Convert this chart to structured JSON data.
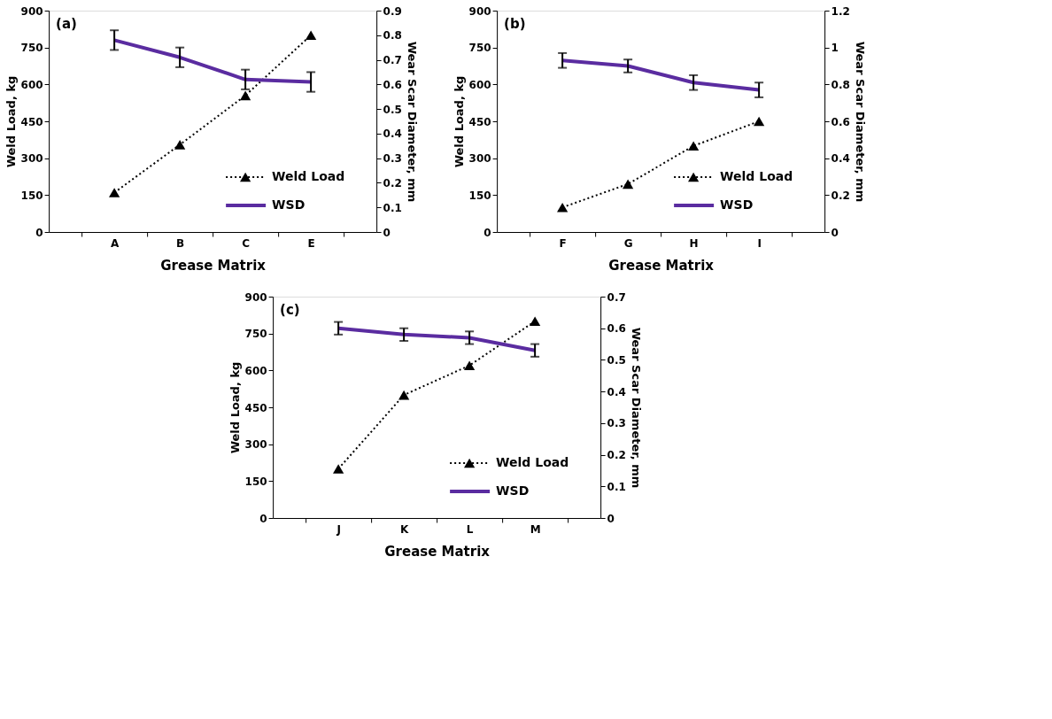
{
  "chart_data": [
    {
      "type": "line",
      "categories": [
        "A",
        "B",
        "C",
        "E"
      ],
      "xlabel": "Grease Matrix",
      "ylabel": "Weld Load, kg",
      "y2label": "Wear Scar Diameter, mm",
      "ylim": [
        0,
        900
      ],
      "yticks": [
        0,
        150,
        300,
        450,
        600,
        750,
        900
      ],
      "y2lim": [
        0,
        0.9
      ],
      "y2ticks": [
        0,
        0.1,
        0.2,
        0.3,
        0.4,
        0.5,
        0.6,
        0.7,
        0.8,
        0.9
      ],
      "grid": false,
      "legend": "bottom right",
      "annotations": [
        "(a)"
      ],
      "series": [
        {
          "name": "Weld Load",
          "color": "#000000",
          "marker": "triangle",
          "line_style": "dotted",
          "values": [
            160,
            355,
            555,
            800
          ]
        },
        {
          "name": "WSD",
          "color": "#5a2ca0",
          "marker": "none",
          "line_style": "solid",
          "axis": "y2",
          "values": [
            0.78,
            0.71,
            0.62,
            0.61
          ],
          "errors": [
            0.04,
            0.04,
            0.04,
            0.04
          ]
        }
      ]
    },
    {
      "type": "line",
      "categories": [
        "F",
        "G",
        "H",
        "I"
      ],
      "xlabel": "Grease Matrix",
      "ylabel": "Weld Load, kg",
      "y2label": "Wear Scar Diameter, mm",
      "ylim": [
        0,
        900
      ],
      "yticks": [
        0,
        150,
        300,
        450,
        600,
        750,
        900
      ],
      "y2lim": [
        0,
        1.2
      ],
      "y2ticks": [
        0,
        0.2,
        0.4,
        0.6,
        0.8,
        1,
        1.2
      ],
      "grid": false,
      "legend": "bottom right",
      "annotations": [
        "(b)"
      ],
      "series": [
        {
          "name": "Weld Load",
          "color": "#000000",
          "marker": "triangle",
          "line_style": "dotted",
          "values": [
            100,
            195,
            350,
            450
          ]
        },
        {
          "name": "WSD",
          "color": "#5a2ca0",
          "marker": "none",
          "line_style": "solid",
          "axis": "y2",
          "values": [
            0.93,
            0.9,
            0.81,
            0.77
          ],
          "errors": [
            0.04,
            0.035,
            0.04,
            0.04
          ]
        }
      ]
    },
    {
      "type": "line",
      "categories": [
        "J",
        "K",
        "L",
        "M"
      ],
      "xlabel": "Grease Matrix",
      "ylabel": "Weld Load, kg",
      "y2label": "Wear Scar Diameter, mm",
      "ylim": [
        0,
        900
      ],
      "yticks": [
        0,
        150,
        300,
        450,
        600,
        750,
        900
      ],
      "y2lim": [
        0,
        0.7
      ],
      "y2ticks": [
        0,
        0.1,
        0.2,
        0.3,
        0.4,
        0.5,
        0.6,
        0.7
      ],
      "grid": false,
      "legend": "bottom right",
      "annotations": [
        "(c)"
      ],
      "series": [
        {
          "name": "Weld Load",
          "color": "#000000",
          "marker": "triangle",
          "line_style": "dotted",
          "values": [
            200,
            500,
            620,
            800
          ]
        },
        {
          "name": "WSD",
          "color": "#5a2ca0",
          "marker": "none",
          "line_style": "solid",
          "axis": "y2",
          "values": [
            0.6,
            0.58,
            0.57,
            0.53
          ],
          "errors": [
            0.02,
            0.02,
            0.02,
            0.02
          ]
        }
      ]
    }
  ]
}
